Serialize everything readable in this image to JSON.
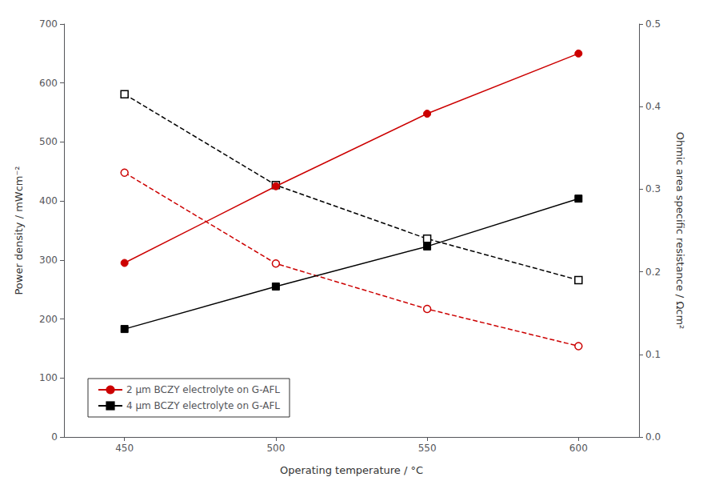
{
  "chart_data": {
    "type": "line",
    "xlabel": "Operating temperature / °C",
    "ylabel": "Power density / mWcm⁻²",
    "y2label": "Ohmic area specific resistance / Ωcm²",
    "x": [
      450,
      500,
      550,
      600
    ],
    "xlim": [
      430,
      620
    ],
    "xticks": [
      450,
      500,
      550,
      600
    ],
    "ylim": [
      0,
      700
    ],
    "yticks": [
      0,
      100,
      200,
      300,
      400,
      500,
      600,
      700
    ],
    "y2lim": [
      0,
      0.5
    ],
    "y2ticks": [
      {
        "value": 0,
        "label": "0.0"
      },
      0.1,
      0.2,
      0.3,
      0.4,
      0.5
    ],
    "grid": false,
    "legend": "lower left",
    "series": [
      {
        "name": "2 μm BCZY electrolyte on G-AFL",
        "color": "#cc0000",
        "marker": "circle",
        "line_style": "solid",
        "values": [
          295,
          425,
          548,
          650
        ]
      },
      {
        "name": "4 μm BCZY electrolyte on G-AFL",
        "color": "#000000",
        "marker": "square",
        "line_style": "solid",
        "values": [
          183,
          255,
          323,
          404
        ]
      },
      {
        "color": "#cc0000",
        "marker": "circle_open",
        "line_style": "dashed",
        "axis": "y2",
        "values": [
          0.32,
          0.21,
          0.155,
          0.11
        ]
      },
      {
        "color": "#000000",
        "marker": "square_open",
        "line_style": "dashed",
        "axis": "y2",
        "values": [
          0.415,
          0.305,
          0.24,
          0.19
        ]
      }
    ]
  }
}
